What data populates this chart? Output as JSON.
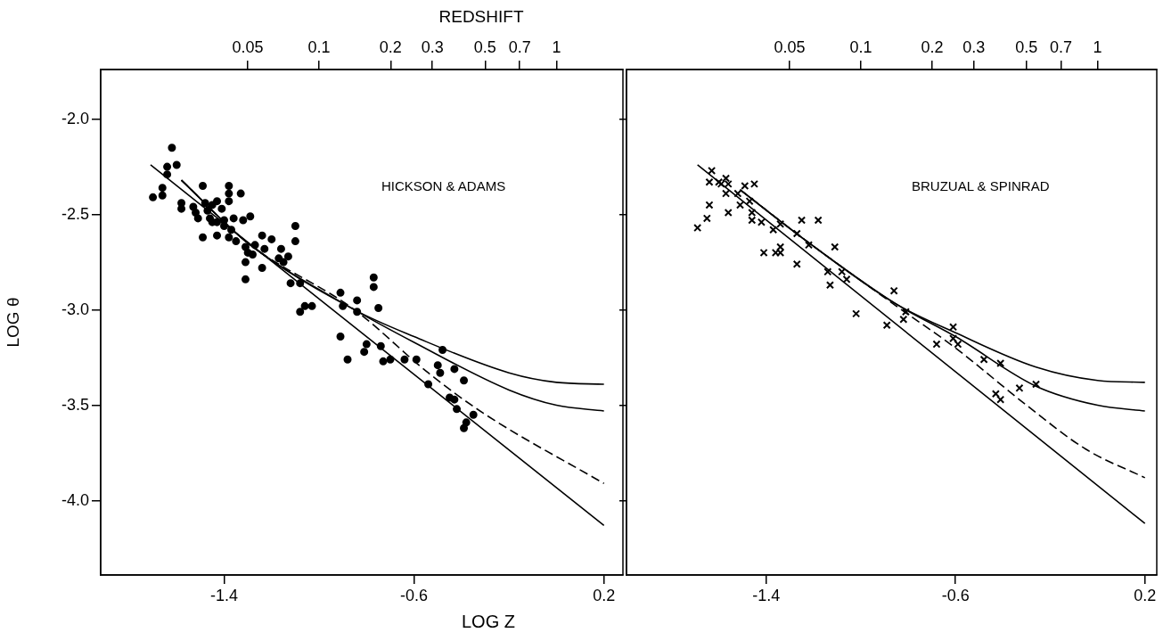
{
  "chart_data": [
    {
      "type": "scatter",
      "x2label": "REDSHIFT",
      "xlabel": "LOG Z",
      "ylabel": "LOG θ",
      "annotations": [
        "HICKSON & ADAMS"
      ],
      "log": "x2",
      "xlim": [
        -1.92,
        0.28
      ],
      "xticks": [
        -1.4,
        -0.6,
        0.2
      ],
      "x2lim": [
        0.01202,
        1.905
      ],
      "x2ticks": [
        0.05,
        0.1,
        0.2,
        0.3,
        0.5,
        0.7,
        1
      ],
      "ylim": [
        -4.39,
        -1.74
      ],
      "yticks": [
        {
          "value": -2,
          "label": "-2.0"
        },
        {
          "value": -2.5,
          "label": "-2.5"
        },
        {
          "value": -3,
          "label": "-3.0"
        },
        {
          "value": -3.5,
          "label": "-3.5"
        },
        {
          "value": -4,
          "label": "-4.0"
        }
      ],
      "grid": false,
      "legend": false,
      "series": [
        {
          "type": "scatter",
          "marker": "circle",
          "color": "#000000",
          "x": [
            -1.62,
            -1.6,
            -1.64,
            -1.64,
            -1.7,
            -1.66,
            -1.66,
            -1.58,
            -1.58,
            -1.53,
            -1.52,
            -1.51,
            -1.49,
            -1.48,
            -1.47,
            -1.43,
            -1.45,
            -1.46,
            -1.45,
            -1.43,
            -1.41,
            -1.4,
            -1.4,
            -1.38,
            -1.38,
            -1.33,
            -1.38,
            -1.36,
            -1.37,
            -1.38,
            -1.35,
            -1.49,
            -1.43,
            -1.32,
            -1.29,
            -1.31,
            -1.3,
            -1.28,
            -1.27,
            -1.31,
            -1.31,
            -1.24,
            -1.23,
            -1.2,
            -1.24,
            -1.16,
            -1.17,
            -1.15,
            -1.13,
            -1.1,
            -1.1,
            -1.12,
            -1.08,
            -1.08,
            -1.06,
            -1.03,
            -0.91,
            -0.9,
            -0.84,
            -0.84,
            -0.91,
            -0.88,
            -0.77,
            -0.77,
            -0.75,
            -0.8,
            -0.81,
            -0.74,
            -0.73,
            -0.7,
            -0.64,
            -0.59,
            -0.48,
            -0.5,
            -0.49,
            -0.43,
            -0.39,
            -0.54,
            -0.45,
            -0.43,
            -0.42,
            -0.35,
            -0.38,
            -0.39
          ],
          "values": [
            -2.15,
            -2.24,
            -2.25,
            -2.29,
            -2.41,
            -2.4,
            -2.36,
            -2.44,
            -2.47,
            -2.46,
            -2.49,
            -2.52,
            -2.35,
            -2.44,
            -2.48,
            -2.43,
            -2.45,
            -2.52,
            -2.54,
            -2.54,
            -2.47,
            -2.53,
            -2.56,
            -2.35,
            -2.39,
            -2.39,
            -2.43,
            -2.52,
            -2.58,
            -2.62,
            -2.64,
            -2.62,
            -2.61,
            -2.53,
            -2.51,
            -2.67,
            -2.7,
            -2.71,
            -2.66,
            -2.75,
            -2.84,
            -2.61,
            -2.68,
            -2.63,
            -2.78,
            -2.68,
            -2.73,
            -2.75,
            -2.72,
            -2.56,
            -2.64,
            -2.86,
            -2.86,
            -3.01,
            -2.98,
            -2.98,
            -2.91,
            -2.98,
            -3.01,
            -2.95,
            -3.14,
            -3.26,
            -2.83,
            -2.88,
            -2.99,
            -3.18,
            -3.22,
            -3.19,
            -3.27,
            -3.26,
            -3.26,
            -3.26,
            -3.21,
            -3.29,
            -3.33,
            -3.31,
            -3.37,
            -3.39,
            -3.46,
            -3.47,
            -3.52,
            -3.55,
            -3.59,
            -3.62
          ]
        },
        {
          "type": "line",
          "marker": "none",
          "line_style": "solid",
          "color": "#000000",
          "x": [
            -1.71,
            0.2
          ],
          "values": [
            -2.24,
            -4.13
          ]
        },
        {
          "type": "line",
          "marker": "none",
          "line_style": "solid",
          "color": "#000000",
          "x": [
            -1.58,
            -1.3,
            -0.85,
            -0.6,
            -0.2,
            0.0,
            0.2
          ],
          "values": [
            -2.32,
            -2.65,
            -3.0,
            -3.14,
            -3.33,
            -3.38,
            -3.39
          ]
        },
        {
          "type": "line",
          "marker": "none",
          "line_style": "solid",
          "color": "#000000",
          "x": [
            -1.58,
            -1.3,
            -0.85,
            -0.6,
            -0.2,
            0.0,
            0.2
          ],
          "values": [
            -2.32,
            -2.65,
            -3.0,
            -3.17,
            -3.42,
            -3.5,
            -3.53
          ]
        },
        {
          "type": "line",
          "marker": "none",
          "line_style": "dashed",
          "color": "#000000",
          "x": [
            -1.58,
            -1.3,
            -0.85,
            -0.54,
            -0.31,
            0.2
          ],
          "values": [
            -2.32,
            -2.65,
            -3.0,
            -3.33,
            -3.54,
            -3.91
          ]
        }
      ]
    },
    {
      "type": "scatter",
      "annotations": [
        "BRUZUAL & SPINRAD"
      ],
      "tick_labels": "x",
      "log": "x2",
      "xlim": [
        -1.99,
        0.25
      ],
      "xticks": [
        -1.4,
        -0.6,
        0.2
      ],
      "x2lim": [
        0.01023,
        1.778
      ],
      "x2ticks": [
        0.05,
        0.1,
        0.2,
        0.3,
        0.5,
        0.7,
        1
      ],
      "ylim": [
        -4.39,
        -1.74
      ],
      "yticks": [
        {
          "value": -2,
          "label": null
        },
        {
          "value": -2.5,
          "label": null
        },
        {
          "value": -3,
          "label": null
        },
        {
          "value": -3.5,
          "label": null
        },
        {
          "value": -4,
          "label": null
        }
      ],
      "grid": false,
      "legend": false,
      "series": [
        {
          "type": "scatter",
          "marker": "cross",
          "color": "#000000",
          "x": [
            -1.63,
            -1.64,
            -1.6,
            -1.57,
            -1.56,
            -1.57,
            -1.59,
            -1.52,
            -1.49,
            -1.45,
            -1.51,
            -1.47,
            -1.46,
            -1.46,
            -1.56,
            -1.64,
            -1.65,
            -1.69,
            -1.42,
            -1.37,
            -1.34,
            -1.34,
            -1.41,
            -1.36,
            -1.34,
            -1.27,
            -1.25,
            -1.18,
            -1.27,
            -1.22,
            -1.11,
            -1.14,
            -1.13,
            -1.08,
            -1.06,
            -1.02,
            -0.86,
            -0.89,
            -0.82,
            -0.81,
            -0.61,
            -0.59,
            -0.61,
            -0.68,
            -0.48,
            -0.41,
            -0.26,
            -0.33,
            -0.43,
            -0.41
          ],
          "values": [
            -2.27,
            -2.33,
            -2.33,
            -2.31,
            -2.34,
            -2.39,
            -2.34,
            -2.39,
            -2.35,
            -2.34,
            -2.45,
            -2.43,
            -2.49,
            -2.53,
            -2.49,
            -2.45,
            -2.52,
            -2.57,
            -2.54,
            -2.58,
            -2.55,
            -2.67,
            -2.7,
            -2.7,
            -2.7,
            -2.6,
            -2.53,
            -2.53,
            -2.76,
            -2.66,
            -2.67,
            -2.8,
            -2.87,
            -2.8,
            -2.84,
            -3.02,
            -2.9,
            -3.08,
            -3.05,
            -3.01,
            -3.09,
            -3.18,
            -3.15,
            -3.18,
            -3.26,
            -3.28,
            -3.39,
            -3.41,
            -3.44,
            -3.47
          ]
        },
        {
          "type": "line",
          "marker": "none",
          "line_style": "solid",
          "color": "#000000",
          "x": [
            -1.69,
            0.2
          ],
          "values": [
            -2.24,
            -4.12
          ]
        },
        {
          "type": "line",
          "marker": "none",
          "line_style": "solid",
          "color": "#000000",
          "x": [
            -1.51,
            -1.25,
            -0.85,
            -0.6,
            -0.26,
            0.0,
            0.2
          ],
          "values": [
            -2.37,
            -2.62,
            -2.97,
            -3.12,
            -3.3,
            -3.37,
            -3.38
          ]
        },
        {
          "type": "line",
          "marker": "none",
          "line_style": "solid",
          "color": "#000000",
          "x": [
            -1.51,
            -1.25,
            -0.85,
            -0.6,
            -0.26,
            0.0,
            0.2
          ],
          "values": [
            -2.37,
            -2.62,
            -2.97,
            -3.14,
            -3.4,
            -3.5,
            -3.53
          ]
        },
        {
          "type": "line",
          "marker": "none",
          "line_style": "dashed",
          "color": "#000000",
          "x": [
            -1.51,
            -1.25,
            -0.85,
            -0.6,
            -0.3,
            -0.05,
            0.2
          ],
          "values": [
            -2.37,
            -2.62,
            -2.98,
            -3.2,
            -3.5,
            -3.73,
            -3.88
          ]
        }
      ]
    }
  ]
}
